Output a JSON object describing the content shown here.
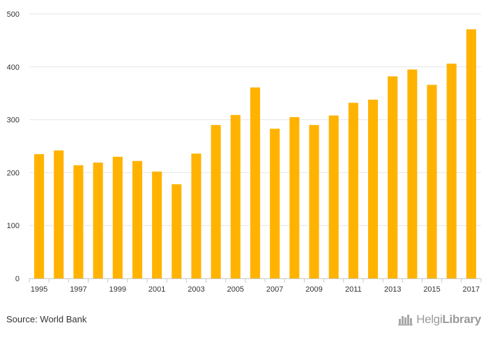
{
  "chart_data": {
    "type": "bar",
    "categories": [
      "1995",
      "1996",
      "1997",
      "1998",
      "1999",
      "2000",
      "2001",
      "2002",
      "2003",
      "2004",
      "2005",
      "2006",
      "2007",
      "2008",
      "2009",
      "2010",
      "2011",
      "2012",
      "2013",
      "2014",
      "2015",
      "2016",
      "2017"
    ],
    "tick_labels": [
      "1995",
      "1997",
      "1999",
      "2001",
      "2003",
      "2005",
      "2007",
      "2009",
      "2011",
      "2013",
      "2015",
      "2017"
    ],
    "values": [
      235,
      242,
      214,
      219,
      230,
      222,
      202,
      178,
      236,
      290,
      309,
      361,
      283,
      305,
      290,
      308,
      332,
      338,
      382,
      395,
      366,
      406,
      471
    ],
    "title": "",
    "xlabel": "",
    "ylabel": "",
    "ylim": [
      0,
      500
    ],
    "yticks": [
      0,
      100,
      200,
      300,
      400,
      500
    ],
    "grid": true,
    "bar_color": "#FFB300",
    "grid_color": "#e6e6e6"
  },
  "footer": {
    "source": "Source: World Bank",
    "logo_regular": "Helgi",
    "logo_bold": "Library"
  },
  "icons": {
    "logo_icon": "helgi-library-icon"
  }
}
